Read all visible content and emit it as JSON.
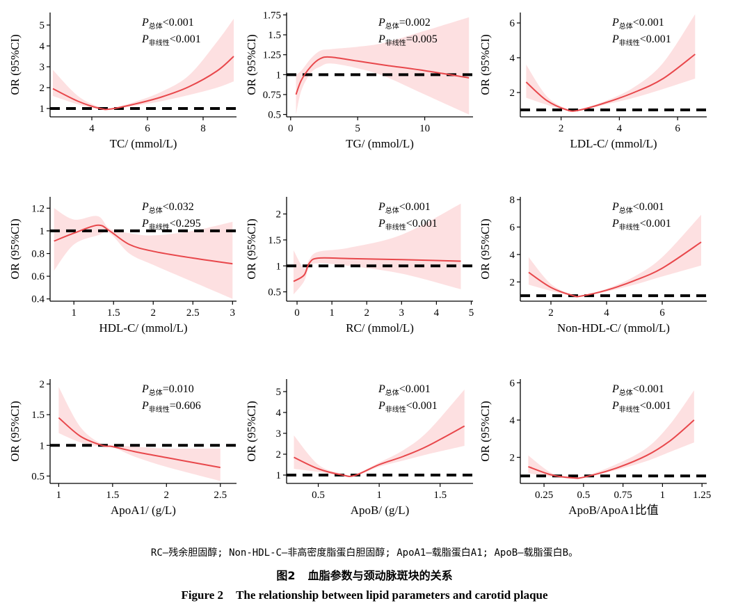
{
  "colors": {
    "curve": "#e8474b",
    "band": "#fde0e1",
    "reference": "#000000",
    "axis": "#000000"
  },
  "chart_data": [
    {
      "type": "line",
      "xlabel": "TC/ (mmol/L)",
      "ylabel": "OR (95%CI)",
      "xlim": [
        2.5,
        9.2
      ],
      "ylim": [
        0.6,
        5.6
      ],
      "xticks": [
        4,
        6,
        8
      ],
      "yticks": [
        1,
        2,
        3,
        4,
        5
      ],
      "reference_y": 1,
      "p_overall": "<0.001",
      "p_nonlinear": "<0.001",
      "series": [
        {
          "x": [
            2.6,
            3.5,
            4.3,
            4.7,
            5.5,
            6.5,
            7.5,
            8.5,
            9.1
          ],
          "y": [
            1.95,
            1.35,
            1.0,
            0.98,
            1.2,
            1.55,
            2.05,
            2.8,
            3.5
          ],
          "lower": [
            1.6,
            1.2,
            0.95,
            0.95,
            1.12,
            1.35,
            1.65,
            2.0,
            2.3
          ],
          "upper": [
            2.85,
            1.6,
            1.06,
            1.02,
            1.3,
            1.8,
            2.6,
            4.2,
            5.3
          ]
        }
      ]
    },
    {
      "type": "line",
      "xlabel": "TG/ (mmol/L)",
      "ylabel": "OR (95%CI)",
      "xlim": [
        -0.3,
        13.6
      ],
      "ylim": [
        0.47,
        1.78
      ],
      "xticks": [
        0,
        5,
        10
      ],
      "yticks": [
        0.5,
        0.75,
        1.0,
        1.25,
        1.5,
        1.75
      ],
      "reference_y": 1,
      "p_overall": "=0.002",
      "p_nonlinear": "=0.005",
      "series": [
        {
          "x": [
            0.4,
            0.8,
            1.5,
            2.2,
            3.0,
            5,
            7,
            10,
            13.3
          ],
          "y": [
            0.75,
            0.93,
            1.1,
            1.2,
            1.22,
            1.17,
            1.12,
            1.05,
            0.96
          ],
          "lower": [
            0.5,
            0.8,
            1.02,
            1.1,
            1.14,
            1.08,
            0.98,
            0.75,
            0.5
          ],
          "upper": [
            1.0,
            1.05,
            1.2,
            1.3,
            1.32,
            1.35,
            1.4,
            1.55,
            1.72
          ]
        }
      ]
    },
    {
      "type": "line",
      "xlabel": "LDL-C/ (mmol/L)",
      "ylabel": "OR (95%CI)",
      "xlim": [
        0.6,
        7.0
      ],
      "ylim": [
        0.6,
        6.6
      ],
      "xticks": [
        2,
        4,
        6
      ],
      "yticks": [
        2,
        4,
        6
      ],
      "reference_y": 1,
      "p_overall": "<0.001",
      "p_nonlinear": "<0.001",
      "series": [
        {
          "x": [
            0.8,
            1.5,
            2.2,
            2.6,
            3.5,
            4.5,
            5.5,
            6.6
          ],
          "y": [
            2.6,
            1.55,
            1.0,
            0.98,
            1.4,
            2.0,
            2.8,
            4.2
          ],
          "lower": [
            1.7,
            1.3,
            0.95,
            0.95,
            1.3,
            1.7,
            2.2,
            2.8
          ],
          "upper": [
            3.6,
            1.8,
            1.06,
            1.02,
            1.5,
            2.3,
            3.7,
            6.5
          ]
        }
      ]
    },
    {
      "type": "line",
      "xlabel": "HDL-C/ (mmol/L)",
      "ylabel": "OR (95%CI)",
      "xlim": [
        0.7,
        3.05
      ],
      "ylim": [
        0.38,
        1.3
      ],
      "xticks": [
        1.0,
        1.5,
        2.0,
        2.5,
        3.0
      ],
      "yticks": [
        0.4,
        0.6,
        0.8,
        1.0,
        1.2
      ],
      "reference_y": 1,
      "p_overall": "<0.032",
      "p_nonlinear": "<0.295",
      "series": [
        {
          "x": [
            0.75,
            1.0,
            1.3,
            1.45,
            1.7,
            2.0,
            2.5,
            3.0
          ],
          "y": [
            0.91,
            0.98,
            1.05,
            1.0,
            0.88,
            0.82,
            0.76,
            0.71
          ],
          "lower": [
            0.65,
            0.88,
            0.96,
            0.98,
            0.8,
            0.7,
            0.55,
            0.4
          ],
          "upper": [
            1.2,
            1.1,
            1.13,
            1.02,
            0.98,
            0.96,
            1.0,
            1.08
          ]
        }
      ]
    },
    {
      "type": "line",
      "xlabel": "RC/ (mmol/L)",
      "ylabel": "OR (95%CI)",
      "xlim": [
        -0.3,
        5.05
      ],
      "ylim": [
        0.32,
        2.33
      ],
      "xticks": [
        0,
        1,
        2,
        3,
        4,
        5
      ],
      "yticks": [
        0.5,
        1.0,
        1.5,
        2.0
      ],
      "reference_y": 1,
      "p_overall": "<0.001",
      "p_nonlinear": "<0.001",
      "series": [
        {
          "x": [
            -0.1,
            0.2,
            0.35,
            0.6,
            1.5,
            3,
            4.7
          ],
          "y": [
            0.7,
            0.82,
            1.05,
            1.15,
            1.14,
            1.12,
            1.09
          ],
          "lower": [
            0.45,
            0.7,
            0.98,
            1.05,
            1.0,
            0.85,
            0.55
          ],
          "upper": [
            1.3,
            0.95,
            1.12,
            1.27,
            1.35,
            1.6,
            2.2
          ]
        }
      ]
    },
    {
      "type": "line",
      "xlabel": "Non-HDL-C/ (mmol/L)",
      "ylabel": "OR (95%CI)",
      "xlim": [
        0.9,
        7.6
      ],
      "ylim": [
        0.6,
        8.2
      ],
      "xticks": [
        2,
        4,
        6
      ],
      "yticks": [
        2,
        4,
        6,
        8
      ],
      "reference_y": 1,
      "p_overall": "<0.001",
      "p_nonlinear": "<0.001",
      "series": [
        {
          "x": [
            1.2,
            2.0,
            2.8,
            3.1,
            4.0,
            5.0,
            6.0,
            7.4
          ],
          "y": [
            2.7,
            1.6,
            1.0,
            0.98,
            1.4,
            2.1,
            3.0,
            4.9
          ],
          "lower": [
            1.8,
            1.35,
            0.95,
            0.95,
            1.3,
            1.8,
            2.4,
            3.2
          ],
          "upper": [
            3.8,
            1.85,
            1.06,
            1.02,
            1.5,
            2.4,
            3.8,
            6.9
          ]
        }
      ]
    },
    {
      "type": "line",
      "xlabel": "ApoA1/ (g/L)",
      "ylabel": "OR (95%CI)",
      "xlim": [
        0.92,
        2.65
      ],
      "ylim": [
        0.38,
        2.08
      ],
      "xticks": [
        1.0,
        1.5,
        2.0,
        2.5
      ],
      "yticks": [
        0.5,
        1.0,
        1.5,
        2.0
      ],
      "reference_y": 1,
      "p_overall": "=0.010",
      "p_nonlinear": "=0.606",
      "series": [
        {
          "x": [
            1.0,
            1.2,
            1.4,
            1.5,
            1.7,
            2.0,
            2.5
          ],
          "y": [
            1.45,
            1.15,
            1.0,
            0.98,
            0.9,
            0.8,
            0.64
          ],
          "lower": [
            1.2,
            1.05,
            0.98,
            0.97,
            0.82,
            0.65,
            0.42
          ],
          "upper": [
            1.95,
            1.3,
            1.02,
            1.0,
            0.98,
            0.95,
            0.95
          ]
        }
      ]
    },
    {
      "type": "line",
      "xlabel": "ApoB/ (g/L)",
      "ylabel": "OR (95%CI)",
      "xlim": [
        0.24,
        1.77
      ],
      "ylim": [
        0.6,
        5.6
      ],
      "xticks": [
        0.5,
        1.0,
        1.5
      ],
      "yticks": [
        1,
        2,
        3,
        4,
        5
      ],
      "reference_y": 1,
      "p_overall": "<0.001",
      "p_nonlinear": "<0.001",
      "series": [
        {
          "x": [
            0.3,
            0.5,
            0.7,
            0.8,
            1.0,
            1.2,
            1.4,
            1.7
          ],
          "y": [
            1.85,
            1.3,
            1.0,
            0.98,
            1.5,
            1.9,
            2.4,
            3.35
          ],
          "lower": [
            1.3,
            1.15,
            0.95,
            0.95,
            1.4,
            1.7,
            2.0,
            2.4
          ],
          "upper": [
            2.9,
            1.5,
            1.06,
            1.02,
            1.6,
            2.2,
            3.1,
            5.1
          ]
        }
      ]
    },
    {
      "type": "line",
      "xlabel": "ApoB/ApoA1比值",
      "ylabel": "OR (95%CI)",
      "xlim": [
        0.1,
        1.28
      ],
      "ylim": [
        0.6,
        6.2
      ],
      "xticks": [
        0.25,
        0.5,
        0.75,
        1.0,
        1.25
      ],
      "yticks": [
        2,
        4,
        6
      ],
      "reference_y": 1,
      "p_overall": "<0.001",
      "p_nonlinear": "<0.001",
      "series": [
        {
          "x": [
            0.15,
            0.3,
            0.43,
            0.5,
            0.7,
            0.9,
            1.05,
            1.2
          ],
          "y": [
            1.5,
            1.05,
            0.9,
            0.93,
            1.4,
            2.1,
            2.9,
            4.0
          ],
          "lower": [
            1.15,
            0.95,
            0.85,
            0.9,
            1.3,
            1.8,
            2.3,
            2.8
          ],
          "upper": [
            2.1,
            1.15,
            0.95,
            0.97,
            1.6,
            2.5,
            3.8,
            5.6
          ]
        }
      ]
    }
  ],
  "p_symbol": "P",
  "p_overall_label": "总体",
  "p_nonlinear_label": "非线性",
  "footnote": "RC—残余胆固醇; Non-HDL-C—非高密度脂蛋白胆固醇; ApoA1—载脂蛋白A1; ApoB—载脂蛋白B。",
  "figure_cn": {
    "number": "图2",
    "title": "血脂参数与颈动脉斑块的关系"
  },
  "figure_en": {
    "number": "Figure 2",
    "title": "The relationship between lipid parameters and carotid plaque"
  }
}
